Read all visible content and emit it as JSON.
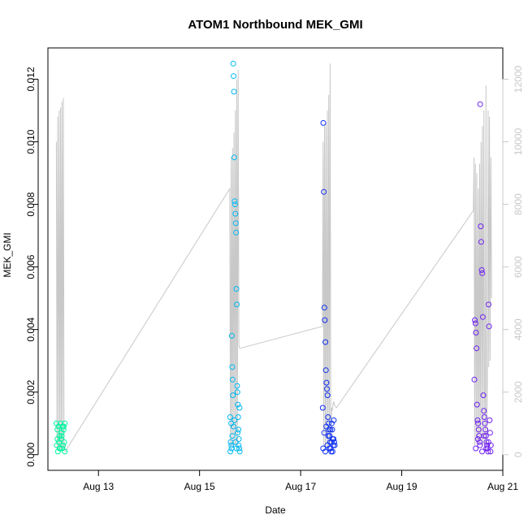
{
  "chart_data": {
    "type": "scatter",
    "title": "ATOM1 Northbound MEK_GMI",
    "xlabel": "Date",
    "ylabel": "MEK_GMI",
    "xlim": [
      "2018-08-12T00:00:00",
      "2018-08-21T00:00:00"
    ],
    "x_ticks": [
      {
        "label": "Aug 13",
        "value": "2018-08-13T00:00:00"
      },
      {
        "label": "Aug 15",
        "value": "2018-08-15T00:00:00"
      },
      {
        "label": "Aug 17",
        "value": "2018-08-17T00:00:00"
      },
      {
        "label": "Aug 19",
        "value": "2018-08-19T00:00:00"
      },
      {
        "label": "Aug 21",
        "value": "2018-08-21T00:00:00"
      }
    ],
    "ylim": [
      -0.0005,
      0.013
    ],
    "y_ticks": [
      "0.000",
      "0.002",
      "0.004",
      "0.006",
      "0.008",
      "0.010",
      "0.012"
    ],
    "y2lim": [
      -500,
      13000
    ],
    "y2_ticks": [
      "0",
      "2000",
      "4000",
      "6000",
      "8000",
      "10000",
      "12000"
    ],
    "line_color": "#c8c8c8",
    "point_colors": [
      "#00f5a0",
      "#00b8f0",
      "#1030f0",
      "#7020f0"
    ],
    "line_series": {
      "x": [
        "2018-08-12T04:00:00",
        "2018-08-12T04:20:00",
        "2018-08-12T04:40:00",
        "2018-08-12T05:00:00",
        "2018-08-12T05:20:00",
        "2018-08-12T05:40:00",
        "2018-08-12T06:00:00",
        "2018-08-12T06:20:00",
        "2018-08-12T06:40:00",
        "2018-08-12T07:00:00",
        "2018-08-12T07:20:00",
        "2018-08-12T07:40:00",
        "2018-08-12T08:00:00",
        "2018-08-12T08:10:00",
        "2018-08-15T14:20:00",
        "2018-08-15T14:40:00",
        "2018-08-15T15:00:00",
        "2018-08-15T15:20:00",
        "2018-08-15T15:40:00",
        "2018-08-15T16:00:00",
        "2018-08-15T16:20:00",
        "2018-08-15T16:40:00",
        "2018-08-15T17:00:00",
        "2018-08-15T17:20:00",
        "2018-08-15T17:40:00",
        "2018-08-15T18:00:00",
        "2018-08-15T18:20:00",
        "2018-08-15T18:40:00",
        "2018-08-15T19:00:00",
        "2018-08-15T19:10:00",
        "2018-08-17T10:20:00",
        "2018-08-17T10:40:00",
        "2018-08-17T11:00:00",
        "2018-08-17T11:20:00",
        "2018-08-17T11:40:00",
        "2018-08-17T12:00:00",
        "2018-08-17T12:20:00",
        "2018-08-17T12:40:00",
        "2018-08-17T13:00:00",
        "2018-08-17T13:20:00",
        "2018-08-17T13:40:00",
        "2018-08-17T14:00:00",
        "2018-08-17T14:20:00",
        "2018-08-17T14:40:00",
        "2018-08-17T15:00:00",
        "2018-08-17T15:20:00",
        "2018-08-17T15:40:00",
        "2018-08-17T16:00:00",
        "2018-08-17T17:00:00",
        "2018-08-20T10:00:00",
        "2018-08-20T10:20:00",
        "2018-08-20T10:40:00",
        "2018-08-20T11:00:00",
        "2018-08-20T11:20:00",
        "2018-08-20T11:40:00",
        "2018-08-20T12:00:00",
        "2018-08-20T12:20:00",
        "2018-08-20T12:40:00",
        "2018-08-20T13:00:00",
        "2018-08-20T13:20:00",
        "2018-08-20T13:40:00",
        "2018-08-20T14:00:00",
        "2018-08-20T14:20:00",
        "2018-08-20T14:40:00",
        "2018-08-20T15:00:00",
        "2018-08-20T15:20:00",
        "2018-08-20T15:40:00",
        "2018-08-20T16:00:00",
        "2018-08-20T16:20:00",
        "2018-08-20T16:40:00",
        "2018-08-20T17:00:00",
        "2018-08-20T17:20:00",
        "2018-08-20T17:40:00",
        "2018-08-20T18:00:00",
        "2018-08-20T18:20:00",
        "2018-08-20T18:40:00"
      ],
      "y": [
        10000,
        200,
        10800,
        150,
        11000,
        180,
        11100,
        160,
        11300,
        200,
        11400,
        150,
        300,
        100,
        8500,
        250,
        9500,
        300,
        9800,
        250,
        10300,
        300,
        11000,
        250,
        12000,
        300,
        12300,
        3500,
        3400,
        3400,
        4100,
        10000,
        250,
        10500,
        200,
        10600,
        250,
        11000,
        200,
        11500,
        250,
        12500,
        300,
        1500,
        1400,
        1600,
        1700,
        1600,
        1500,
        7800,
        9500,
        300,
        9300,
        350,
        9000,
        300,
        8500,
        350,
        9300,
        400,
        10000,
        350,
        10500,
        300,
        11000,
        2000,
        350,
        11800,
        300,
        2500,
        11000,
        2800,
        10800,
        3000,
        9500,
        5000
      ]
    },
    "series": [
      {
        "x": [
          "2018-08-12T04:00:00",
          "2018-08-12T04:15:00",
          "2018-08-12T04:30:00",
          "2018-08-12T04:45:00",
          "2018-08-12T05:00:00",
          "2018-08-12T05:15:00",
          "2018-08-12T05:30:00",
          "2018-08-12T05:45:00",
          "2018-08-12T06:00:00",
          "2018-08-12T06:15:00",
          "2018-08-12T06:30:00",
          "2018-08-12T06:45:00",
          "2018-08-12T07:00:00",
          "2018-08-12T07:15:00",
          "2018-08-12T07:30:00",
          "2018-08-12T07:45:00",
          "2018-08-12T08:00:00",
          "2018-08-12T04:30:00",
          "2018-08-12T05:30:00",
          "2018-08-12T06:30:00",
          "2018-08-12T07:30:00",
          "2018-08-12T08:00:00"
        ],
        "y": [
          0.001,
          0.0003,
          0.0008,
          0.0001,
          0.0009,
          0.0004,
          0.0006,
          0.0002,
          0.001,
          0.0005,
          0.0007,
          0.0002,
          0.0009,
          0.0003,
          0.0008,
          0.0004,
          0.001,
          0.0005,
          0.0002,
          0.0006,
          0.0009,
          0.0001
        ]
      },
      {
        "x": [
          "2018-08-15T14:30:00",
          "2018-08-15T14:45:00",
          "2018-08-15T15:00:00",
          "2018-08-15T15:10:00",
          "2018-08-15T15:20:00",
          "2018-08-15T15:30:00",
          "2018-08-15T15:40:00",
          "2018-08-15T15:50:00",
          "2018-08-15T16:00:00",
          "2018-08-15T16:10:00",
          "2018-08-15T16:20:00",
          "2018-08-15T16:30:00",
          "2018-08-15T16:40:00",
          "2018-08-15T16:50:00",
          "2018-08-15T17:00:00",
          "2018-08-15T17:10:00",
          "2018-08-15T17:20:00",
          "2018-08-15T17:30:00",
          "2018-08-15T17:40:00",
          "2018-08-15T17:50:00",
          "2018-08-15T18:00:00",
          "2018-08-15T18:10:00",
          "2018-08-15T18:20:00",
          "2018-08-15T18:30:00",
          "2018-08-15T18:40:00",
          "2018-08-15T18:50:00",
          "2018-08-15T19:00:00",
          "2018-08-15T14:35:00",
          "2018-08-15T15:05:00",
          "2018-08-15T15:35:00",
          "2018-08-15T16:05:00",
          "2018-08-15T16:35:00",
          "2018-08-15T17:05:00",
          "2018-08-15T17:35:00",
          "2018-08-15T18:05:00",
          "2018-08-15T18:35:00",
          "2018-08-15T19:05:00"
        ],
        "y": [
          0.0012,
          0.0004,
          0.001,
          0.0002,
          0.0038,
          0.0028,
          0.0024,
          0.0019,
          0.0125,
          0.0121,
          0.0116,
          0.0095,
          0.0081,
          0.008,
          0.0077,
          0.0074,
          0.0071,
          0.0053,
          0.0048,
          0.0022,
          0.002,
          0.0016,
          0.0012,
          0.0008,
          0.0005,
          0.0002,
          0.0015,
          0.0001,
          0.0003,
          0.0006,
          0.0009,
          0.0011,
          0.0004,
          0.0002,
          0.0007,
          0.0003,
          0.0001
        ]
      },
      {
        "x": [
          "2018-08-17T10:30:00",
          "2018-08-17T10:45:00",
          "2018-08-17T11:00:00",
          "2018-08-17T11:15:00",
          "2018-08-17T11:30:00",
          "2018-08-17T11:45:00",
          "2018-08-17T12:00:00",
          "2018-08-17T12:15:00",
          "2018-08-17T12:30:00",
          "2018-08-17T12:45:00",
          "2018-08-17T13:00:00",
          "2018-08-17T13:15:00",
          "2018-08-17T13:30:00",
          "2018-08-17T13:45:00",
          "2018-08-17T14:00:00",
          "2018-08-17T14:15:00",
          "2018-08-17T14:30:00",
          "2018-08-17T14:45:00",
          "2018-08-17T15:00:00",
          "2018-08-17T15:15:00",
          "2018-08-17T15:30:00",
          "2018-08-17T15:45:00",
          "2018-08-17T16:00:00",
          "2018-08-17T10:40:00",
          "2018-08-17T11:10:00",
          "2018-08-17T11:40:00",
          "2018-08-17T12:10:00",
          "2018-08-17T12:40:00",
          "2018-08-17T13:10:00",
          "2018-08-17T13:40:00",
          "2018-08-17T14:10:00",
          "2018-08-17T14:40:00",
          "2018-08-17T15:10:00",
          "2018-08-17T15:40:00",
          "2018-08-17T16:10:00"
        ],
        "y": [
          0.0015,
          0.0106,
          0.0084,
          0.0047,
          0.0043,
          0.0036,
          0.0027,
          0.0023,
          0.0021,
          0.0019,
          0.0012,
          0.001,
          0.0008,
          0.0006,
          0.0004,
          0.0002,
          0.0001,
          0.001,
          0.0008,
          0.0005,
          0.0003,
          0.0011,
          0.0004,
          0.0002,
          0.0007,
          0.0001,
          0.0009,
          0.0003,
          0.0006,
          0.0002,
          0.0008,
          0.0004,
          0.0001,
          0.0005,
          0.0003
        ]
      },
      {
        "x": [
          "2018-08-20T10:30:00",
          "2018-08-20T10:45:00",
          "2018-08-20T11:00:00",
          "2018-08-20T11:15:00",
          "2018-08-20T11:30:00",
          "2018-08-20T11:45:00",
          "2018-08-20T12:00:00",
          "2018-08-20T12:15:00",
          "2018-08-20T12:30:00",
          "2018-08-20T12:45:00",
          "2018-08-20T13:00:00",
          "2018-08-20T13:15:00",
          "2018-08-20T13:30:00",
          "2018-08-20T13:45:00",
          "2018-08-20T14:00:00",
          "2018-08-20T14:15:00",
          "2018-08-20T14:30:00",
          "2018-08-20T14:45:00",
          "2018-08-20T15:00:00",
          "2018-08-20T15:15:00",
          "2018-08-20T15:30:00",
          "2018-08-20T15:45:00",
          "2018-08-20T16:00:00",
          "2018-08-20T16:15:00",
          "2018-08-20T16:30:00",
          "2018-08-20T16:45:00",
          "2018-08-20T17:00:00",
          "2018-08-20T17:15:00",
          "2018-08-20T17:30:00",
          "2018-08-20T17:45:00",
          "2018-08-20T18:00:00",
          "2018-08-20T11:10:00",
          "2018-08-20T12:10:00",
          "2018-08-20T13:10:00",
          "2018-08-20T14:10:00",
          "2018-08-20T15:10:00",
          "2018-08-20T16:10:00",
          "2018-08-20T17:10:00",
          "2018-08-20T18:10:00",
          "2018-08-20T18:20:00"
        ],
        "y": [
          0.0024,
          0.0043,
          0.0042,
          0.0039,
          0.0034,
          0.0016,
          0.0011,
          0.001,
          0.0008,
          0.0006,
          0.0004,
          0.0112,
          0.0073,
          0.0068,
          0.0059,
          0.0058,
          0.0044,
          0.0019,
          0.0014,
          0.0012,
          0.001,
          0.0008,
          0.0006,
          0.0004,
          0.0003,
          0.0002,
          0.0001,
          0.0048,
          0.0041,
          0.0011,
          0.0007,
          0.0002,
          0.0005,
          0.0003,
          0.0001,
          0.0006,
          0.0002,
          0.0004,
          0.0001,
          0.0003
        ]
      }
    ]
  }
}
